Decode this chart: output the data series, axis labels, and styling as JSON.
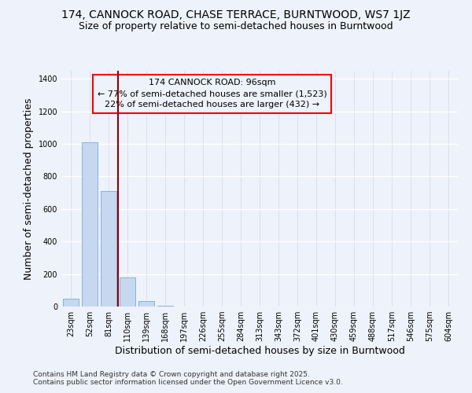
{
  "title": "174, CANNOCK ROAD, CHASE TERRACE, BURNTWOOD, WS7 1JZ",
  "subtitle": "Size of property relative to semi-detached houses in Burntwood",
  "xlabel": "Distribution of semi-detached houses by size in Burntwood",
  "ylabel": "Number of semi-detached properties",
  "bar_color": "#c5d8f0",
  "bar_edge_color": "#7baad4",
  "categories": [
    "23sqm",
    "52sqm",
    "81sqm",
    "110sqm",
    "139sqm",
    "168sqm",
    "197sqm",
    "226sqm",
    "255sqm",
    "284sqm",
    "313sqm",
    "343sqm",
    "372sqm",
    "401sqm",
    "430sqm",
    "459sqm",
    "488sqm",
    "517sqm",
    "546sqm",
    "575sqm",
    "604sqm"
  ],
  "values": [
    50,
    1010,
    710,
    180,
    35,
    5,
    0,
    0,
    0,
    0,
    0,
    0,
    0,
    0,
    0,
    0,
    0,
    0,
    0,
    0,
    0
  ],
  "ylim": [
    0,
    1450
  ],
  "yticks": [
    0,
    200,
    400,
    600,
    800,
    1000,
    1200,
    1400
  ],
  "property_line_x": 2.52,
  "property_line_color": "#8b0000",
  "annotation_line1": "174 CANNOCK ROAD: 96sqm",
  "annotation_line2": "← 77% of semi-detached houses are smaller (1,523)",
  "annotation_line3": "22% of semi-detached houses are larger (432) →",
  "footer_line1": "Contains HM Land Registry data © Crown copyright and database right 2025.",
  "footer_line2": "Contains public sector information licensed under the Open Government Licence v3.0.",
  "background_color": "#eef2fa",
  "grid_color": "#d8dff0",
  "title_fontsize": 10,
  "subtitle_fontsize": 9,
  "axis_label_fontsize": 9,
  "tick_fontsize": 7,
  "annotation_fontsize": 8,
  "footer_fontsize": 6.5
}
